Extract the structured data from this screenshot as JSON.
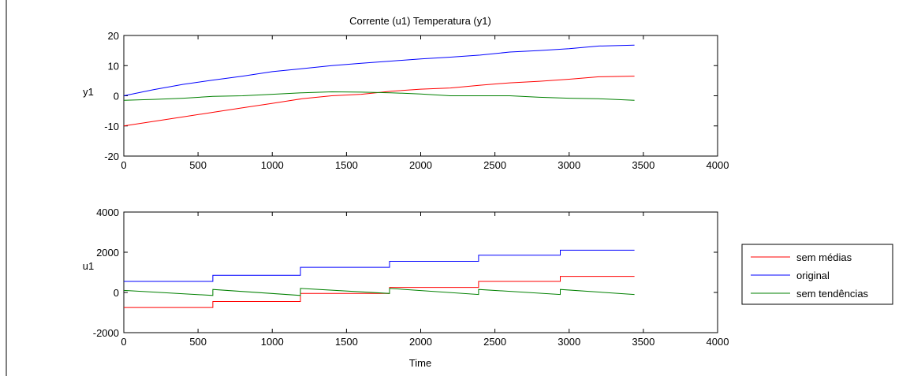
{
  "figure": {
    "title": "Corrente (u1) Temperatura (y1)",
    "xlabel": "Time"
  },
  "legend": {
    "placement": "right-middle",
    "entries": [
      {
        "label": "sem médias",
        "color": "#ff0000"
      },
      {
        "label": "original",
        "color": "#0000ff"
      },
      {
        "label": "sem tendências",
        "color": "#008000"
      }
    ]
  },
  "chart_data": [
    {
      "type": "line",
      "ylabel": "y1",
      "xlim": [
        0,
        4000
      ],
      "ylim": [
        -20,
        20
      ],
      "xticks": [
        "0",
        "500",
        "1000",
        "1500",
        "2000",
        "2500",
        "3000",
        "3500",
        "4000"
      ],
      "yticks": [
        "-20",
        "-10",
        "0",
        "10",
        "20"
      ],
      "series": [
        {
          "name": "original",
          "color": "#0000ff",
          "x": [
            0,
            200,
            400,
            600,
            800,
            1000,
            1200,
            1400,
            1600,
            1800,
            2000,
            2200,
            2400,
            2600,
            2800,
            3000,
            3200,
            3440
          ],
          "y": [
            0,
            2,
            3.8,
            5.2,
            6.5,
            8,
            9,
            10,
            10.8,
            11.5,
            12.2,
            12.8,
            13.5,
            14.5,
            15,
            15.6,
            16.5,
            16.8
          ]
        },
        {
          "name": "sem médias",
          "color": "#ff0000",
          "x": [
            0,
            200,
            400,
            600,
            800,
            1000,
            1200,
            1400,
            1600,
            1800,
            2000,
            2200,
            2400,
            2600,
            2800,
            3000,
            3200,
            3440
          ],
          "y": [
            -10,
            -8.5,
            -7,
            -5.5,
            -4,
            -2.5,
            -1,
            0,
            0.5,
            1.5,
            2.2,
            2.6,
            3.5,
            4.3,
            4.8,
            5.5,
            6.3,
            6.5
          ]
        },
        {
          "name": "sem tendências",
          "color": "#008000",
          "x": [
            0,
            200,
            400,
            600,
            800,
            1000,
            1200,
            1400,
            1600,
            1800,
            2000,
            2200,
            2400,
            2600,
            2800,
            3000,
            3200,
            3440
          ],
          "y": [
            -1.5,
            -1.2,
            -0.8,
            -0.2,
            0,
            0.5,
            1,
            1.3,
            1.2,
            1,
            0.6,
            0,
            0,
            0,
            -0.5,
            -0.8,
            -1,
            -1.5
          ]
        }
      ]
    },
    {
      "type": "line",
      "ylabel": "u1",
      "xlabel": "Time",
      "xlim": [
        0,
        4000
      ],
      "ylim": [
        -2000,
        4000
      ],
      "xticks": [
        "0",
        "500",
        "1000",
        "1500",
        "2000",
        "2500",
        "3000",
        "3500",
        "4000"
      ],
      "yticks": [
        "-2000",
        "0",
        "2000",
        "4000"
      ],
      "series": [
        {
          "name": "original",
          "color": "#0000ff",
          "x": [
            0,
            600,
            600,
            1190,
            1190,
            1790,
            1790,
            2390,
            2390,
            2940,
            2940,
            3440
          ],
          "y": [
            550,
            550,
            850,
            850,
            1250,
            1250,
            1550,
            1550,
            1850,
            1850,
            2100,
            2100
          ]
        },
        {
          "name": "sem médias",
          "color": "#ff0000",
          "x": [
            0,
            600,
            600,
            1190,
            1190,
            1790,
            1790,
            2390,
            2390,
            2940,
            2940,
            3440
          ],
          "y": [
            -750,
            -750,
            -450,
            -450,
            -50,
            -50,
            250,
            250,
            550,
            550,
            800,
            800
          ]
        },
        {
          "name": "sem tendências",
          "color": "#008000",
          "x": [
            0,
            600,
            600,
            1190,
            1190,
            1790,
            1790,
            2390,
            2390,
            2940,
            2940,
            3440
          ],
          "y": [
            100,
            -150,
            150,
            -150,
            200,
            -50,
            200,
            -100,
            150,
            -100,
            150,
            -100
          ]
        }
      ]
    }
  ]
}
